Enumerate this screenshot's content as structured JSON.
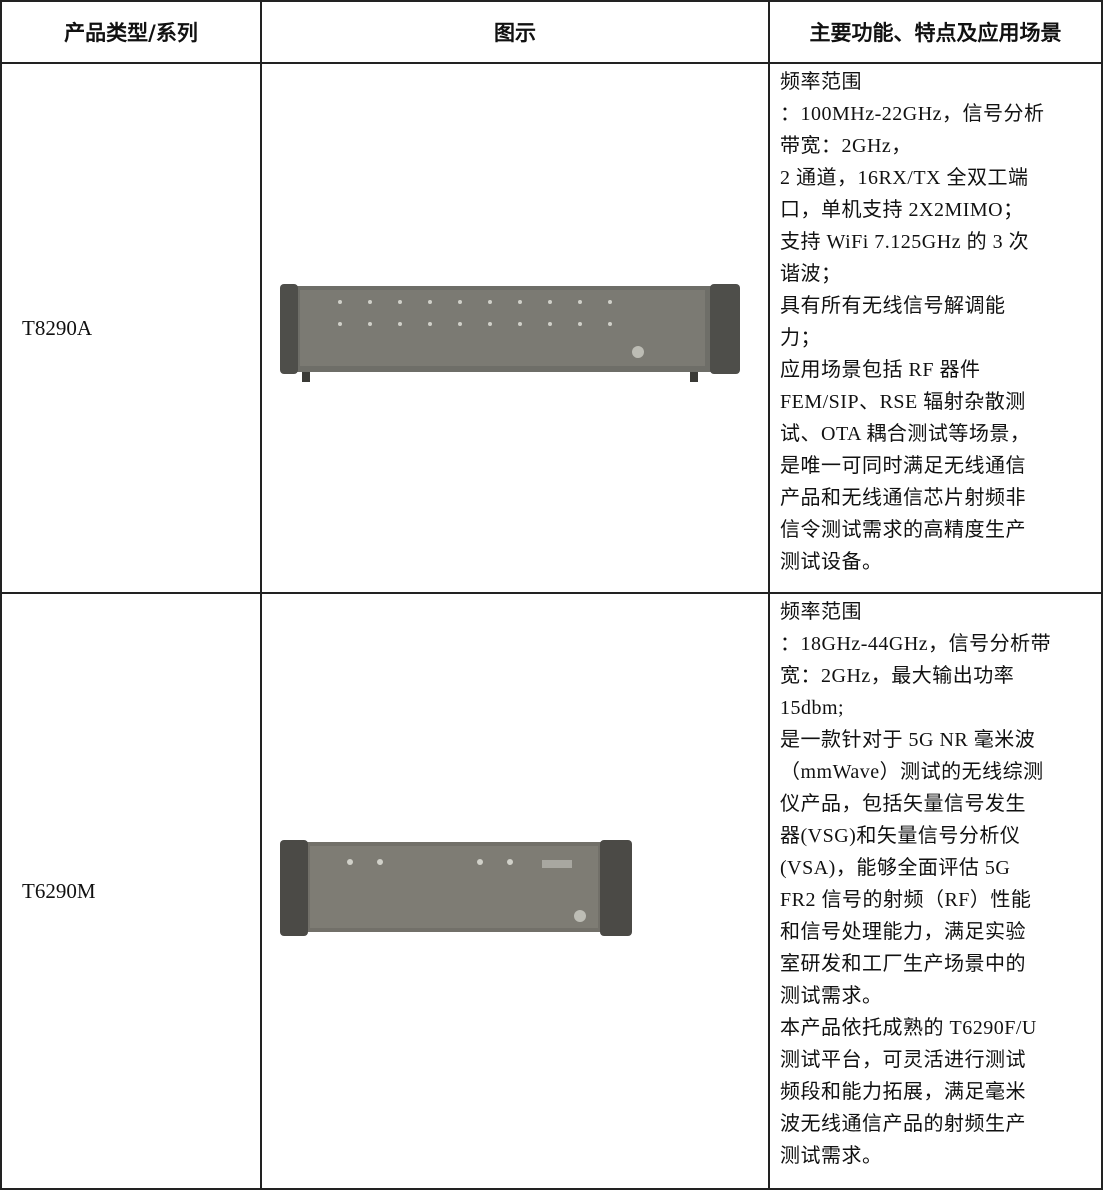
{
  "table": {
    "header": [
      "产品类型/系列",
      "图示",
      "主要功能、特点及应用场景"
    ],
    "rows": [
      {
        "name": "T8290A",
        "description": [
          "频率范围",
          "：100MHz-22GHz，信号分析",
          "带宽：2GHz，",
          "2 通道，16RX/TX 全双工端",
          "口，单机支持 2X2MIMO；",
          "支持 WiFi 7.125GHz 的 3 次",
          "谐波；",
          "具有所有无线信号解调能",
          "力；",
          "应用场景包括 RF 器件",
          "FEM/SIP、RSE 辐射杂散测",
          "试、OTA 耦合测试等场景，",
          "是唯一可同时满足无线通信",
          "产品和无线通信芯片射频非",
          "信令测试需求的高精度生产",
          "测试设备。"
        ]
      },
      {
        "name": "T6290M",
        "description": [
          "频率范围",
          "：18GHz-44GHz，信号分析带",
          "宽：2GHz，最大输出功率",
          "15dbm;",
          "是一款针对于 5G NR 毫米波",
          "（mmWave）测试的无线综测",
          "仪产品，包括矢量信号发生",
          "器(VSG)和矢量信号分析仪",
          "(VSA)，能够全面评估 5G",
          "FR2 信号的射频（RF）性能",
          "和信号处理能力，满足实验",
          "室研发和工厂生产场景中的",
          "测试需求。",
          "本产品依托成熟的 T6290F/U",
          "测试平台，可灵活进行测试",
          "频段和能力拓展，满足毫米",
          "波无线通信产品的射频生产",
          "测试需求。"
        ]
      }
    ]
  }
}
